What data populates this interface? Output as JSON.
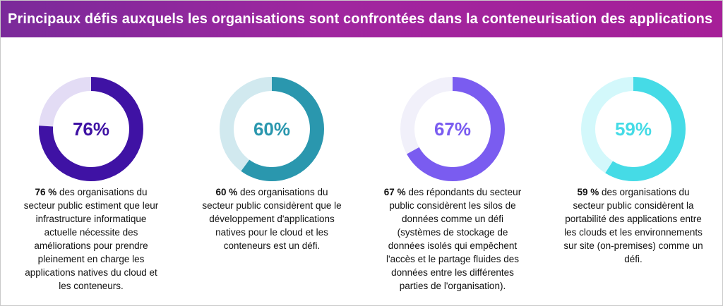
{
  "header": {
    "title": "Principaux défis auxquels les organisations sont confrontées dans la conteneurisation des applications"
  },
  "chart_data": [
    {
      "type": "pie",
      "values": [
        76,
        24
      ],
      "label": "76%",
      "colors": {
        "value": "#3f12a4",
        "track": "#e3dcf5",
        "label": "#3f12a4"
      },
      "desc_lead": "76 %",
      "desc_text": " des organisations du secteur public estiment que leur infrastructure informatique actuelle nécessite des améliorations pour prendre pleinement en charge les applications natives du cloud et les conteneurs."
    },
    {
      "type": "pie",
      "values": [
        60,
        40
      ],
      "label": "60%",
      "colors": {
        "value": "#2a97ae",
        "track": "#d1e9ef",
        "label": "#2a97ae"
      },
      "desc_lead": "60 %",
      "desc_text": " des organisations du secteur public considèrent que le développement d'applications natives pour le cloud et les conteneurs est un défi."
    },
    {
      "type": "pie",
      "values": [
        67,
        33
      ],
      "label": "67%",
      "colors": {
        "value": "#7a5cf0",
        "track": "#f1f0fa",
        "label": "#7a5cf0"
      },
      "desc_lead": "67 %",
      "desc_text": " des répondants du secteur public considèrent les silos de données comme un défi (systèmes de stockage de données isolés qui empêchent l'accès et le partage fluides des données entre les différentes parties de l'organisation)."
    },
    {
      "type": "pie",
      "values": [
        59,
        41
      ],
      "label": "59%",
      "colors": {
        "value": "#45dbe6",
        "track": "#d3f8fb",
        "label": "#45dbe6"
      },
      "desc_lead": "59 %",
      "desc_text": " des organisations du secteur public considèrent la portabilité des applications entre les clouds et les environnements sur site (on-premises) comme un défi."
    }
  ]
}
